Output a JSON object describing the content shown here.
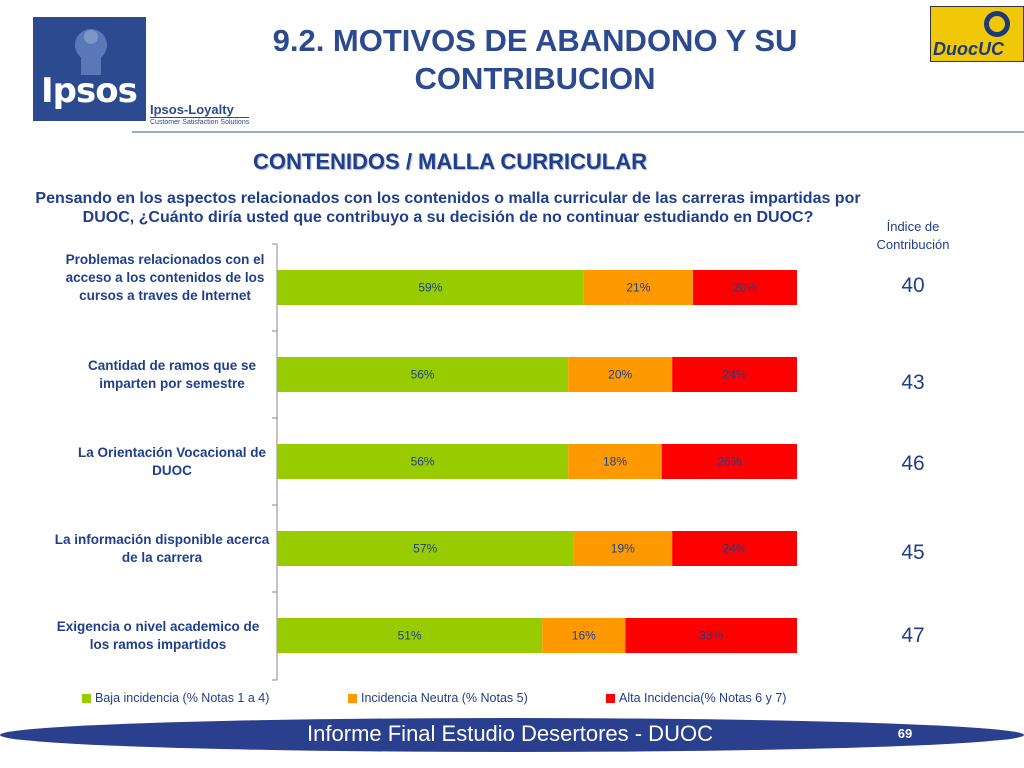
{
  "header": {
    "title": "9.2. MOTIVOS DE ABANDONO Y SU CONTRIBUCION",
    "brand_left": "Ipsos",
    "brand_left_sub": "Ipsos-Loyalty",
    "brand_left_tagline": "Customer Satisfaction Solutions",
    "brand_right": "DuocUC"
  },
  "subtitle": "CONTENIDOS / MALLA CURRICULAR",
  "question": "Pensando en los aspectos relacionados con los contenidos o malla curricular de las carreras impartidas por DUOC, ¿Cuánto diría usted que contribuyo a su decisión de no continuar estudiando en DUOC?",
  "indice": {
    "header": "Índice de Contribución",
    "values": [
      "40",
      "43",
      "46",
      "45",
      "47"
    ]
  },
  "chart_data": {
    "type": "bar",
    "orientation": "horizontal",
    "stacked": true,
    "categories": [
      "Problemas relacionados con el acceso a los contenidos de los cursos a traves de Internet",
      "Cantidad de ramos que se imparten por semestre",
      "La Orientación Vocacional de DUOC",
      "La información disponible acerca de la carrera",
      "Exigencia o nivel academico de los ramos impartidos"
    ],
    "series": [
      {
        "name": "Baja incidencia (% Notas 1 a 4)",
        "color": "#99cc00",
        "values": [
          59,
          56,
          56,
          57,
          51
        ]
      },
      {
        "name": "Incidencia Neutra (% Notas 5)",
        "color": "#ff9900",
        "values": [
          21,
          20,
          18,
          19,
          16
        ]
      },
      {
        "name": "Alta Incidencia(% Notas 6 y 7)",
        "color": "#ff0000",
        "values": [
          20,
          24,
          26,
          24,
          33
        ]
      }
    ],
    "data_labels": [
      [
        "59%",
        "21%",
        "20%"
      ],
      [
        "56%",
        "20%",
        "24%"
      ],
      [
        "56%",
        "18%",
        "26%"
      ],
      [
        "57%",
        "19%",
        "24%"
      ],
      [
        "51%",
        "16%",
        "33%"
      ]
    ],
    "xlim": [
      0,
      100
    ],
    "legend_position": "bottom",
    "grid": false
  },
  "footer": {
    "text": "Informe Final Estudio Desertores - DUOC",
    "page": "69"
  },
  "colors": {
    "brand_blue": "#1f3f8c",
    "footer_blue": "#2b3f8f"
  }
}
